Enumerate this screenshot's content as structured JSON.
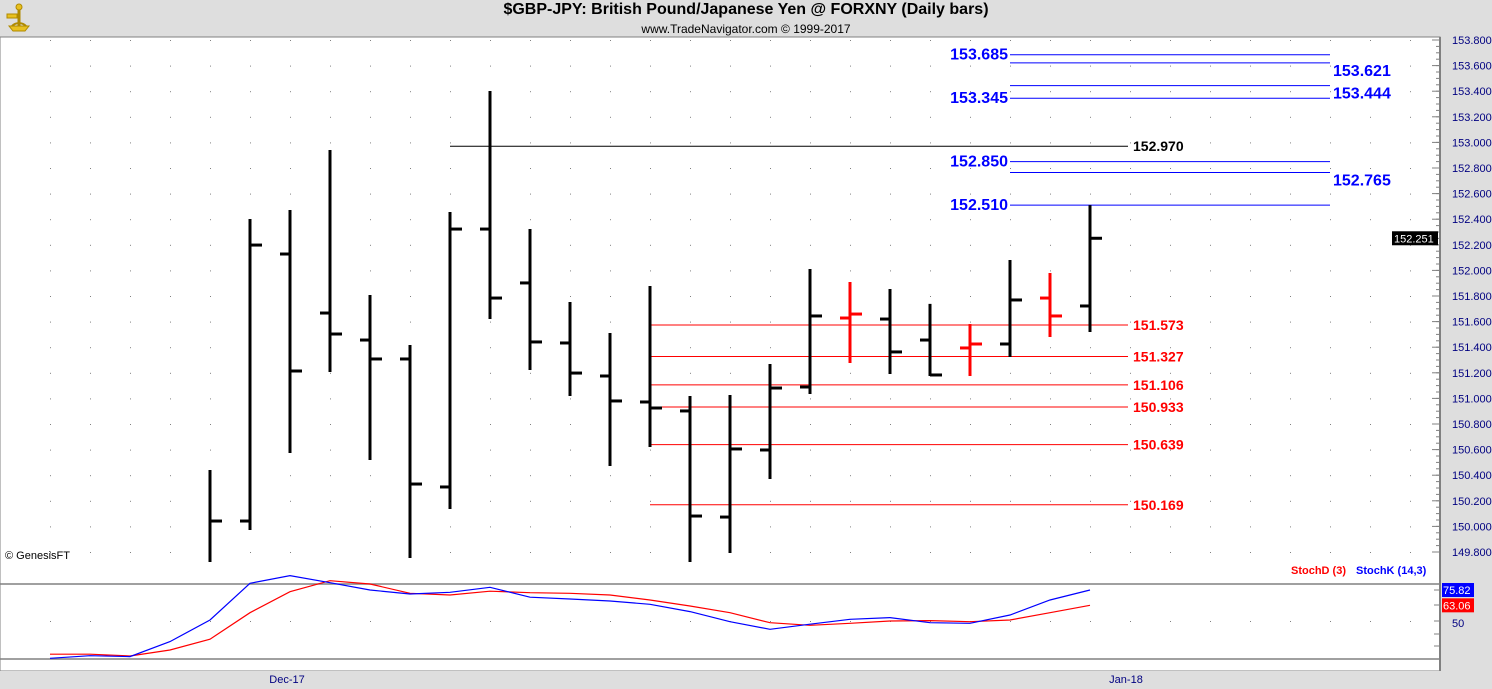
{
  "header": {
    "title": "$GBP-JPY:  British Pound/Japanese Yen @ FORXNY  (Daily bars)",
    "subtitle": "www.TradeNavigator.com © 1999-2017",
    "logo_icon": "sextant-icon"
  },
  "copyright": "© GenesisFT",
  "colors": {
    "up_bar": "#000000",
    "red_bar": "#ff0000",
    "support": "#ff0000",
    "target": "#0000ff",
    "pivot": "#000000",
    "stoch_k": "#0000ff",
    "stoch_d": "#ff0000"
  },
  "chart_data": [
    {
      "type": "ohlc",
      "title": "$GBP-JPY Daily bars",
      "ylim": [
        149.8,
        153.8
      ],
      "y_ticks": [
        "153.800",
        "153.600",
        "153.400",
        "153.200",
        "153.000",
        "152.800",
        "152.600",
        "152.400",
        "152.200",
        "152.000",
        "151.800",
        "151.600",
        "151.400",
        "151.200",
        "151.000",
        "150.800",
        "150.600",
        "150.400",
        "150.200",
        "150.000",
        "149.800"
      ],
      "x_labels": [
        {
          "index": 2,
          "label": "Dec-17"
        },
        {
          "index": 23,
          "label": "Jan-18"
        }
      ],
      "last_price": "152.251",
      "bars": [
        {
          "o": null,
          "h": 150.441,
          "l": 149.722,
          "c": 150.042,
          "color": "black"
        },
        {
          "o": 150.042,
          "h": 152.402,
          "l": 149.972,
          "c": 152.198,
          "color": "black"
        },
        {
          "o": 152.128,
          "h": 152.472,
          "l": 150.573,
          "c": 151.214,
          "color": "black"
        },
        {
          "o": 151.667,
          "h": 152.941,
          "l": 151.206,
          "c": 151.503,
          "color": "black"
        },
        {
          "o": 151.456,
          "h": 151.808,
          "l": 150.519,
          "c": 151.308,
          "color": "black"
        },
        {
          "o": 151.308,
          "h": 151.417,
          "l": 149.753,
          "c": 150.331,
          "color": "black"
        },
        {
          "o": 150.308,
          "h": 152.456,
          "l": 150.136,
          "c": 152.323,
          "color": "black"
        },
        {
          "o": 152.323,
          "h": 153.402,
          "l": 151.62,
          "c": 151.784,
          "color": "black"
        },
        {
          "o": 151.902,
          "h": 152.323,
          "l": 151.222,
          "c": 151.441,
          "color": "black"
        },
        {
          "o": 151.433,
          "h": 151.753,
          "l": 151.019,
          "c": 151.198,
          "color": "black"
        },
        {
          "o": 151.175,
          "h": 151.511,
          "l": 150.472,
          "c": 150.98,
          "color": "black"
        },
        {
          "o": 150.972,
          "h": 151.878,
          "l": 150.62,
          "c": 150.925,
          "color": "black"
        },
        {
          "o": 150.902,
          "h": 151.019,
          "l": 149.722,
          "c": 150.081,
          "color": "black"
        },
        {
          "o": 150.073,
          "h": 151.027,
          "l": 149.792,
          "c": 150.605,
          "color": "black"
        },
        {
          "o": 150.597,
          "h": 151.269,
          "l": 150.37,
          "c": 151.081,
          "color": "black"
        },
        {
          "o": 151.089,
          "h": 152.011,
          "l": 151.034,
          "c": 151.644,
          "color": "black"
        },
        {
          "o": 151.628,
          "h": 151.909,
          "l": 151.277,
          "c": 151.659,
          "color": "red"
        },
        {
          "o": 151.62,
          "h": 151.855,
          "l": 151.191,
          "c": 151.363,
          "color": "black"
        },
        {
          "o": 151.456,
          "h": 151.738,
          "l": 151.175,
          "c": 151.183,
          "color": "black"
        },
        {
          "o": 151.394,
          "h": 151.581,
          "l": 151.175,
          "c": 151.425,
          "color": "red"
        },
        {
          "o": 151.425,
          "h": 152.081,
          "l": 151.323,
          "c": 151.769,
          "color": "black"
        },
        {
          "o": 151.784,
          "h": 151.98,
          "l": 151.48,
          "c": 151.644,
          "color": "red"
        },
        {
          "o": 151.722,
          "h": 152.51,
          "l": 151.519,
          "c": 152.251,
          "color": "black"
        }
      ],
      "levels": [
        {
          "value": 153.685,
          "label": "153.685",
          "kind": "target",
          "label_side": "left",
          "from_bar": 21
        },
        {
          "value": 153.621,
          "label": "153.621",
          "kind": "target",
          "label_side": "right",
          "from_bar": 21
        },
        {
          "value": 153.444,
          "label": "153.444",
          "kind": "target",
          "label_side": "right",
          "from_bar": 21
        },
        {
          "value": 153.345,
          "label": "153.345",
          "kind": "target",
          "label_side": "left",
          "from_bar": 21
        },
        {
          "value": 152.97,
          "label": "152.970",
          "kind": "pivot",
          "label_side": "end",
          "from_bar": 7
        },
        {
          "value": 152.85,
          "label": "152.850",
          "kind": "target",
          "label_side": "left",
          "from_bar": 21
        },
        {
          "value": 152.765,
          "label": "152.765",
          "kind": "target",
          "label_side": "right",
          "from_bar": 21
        },
        {
          "value": 152.51,
          "label": "152.510",
          "kind": "target",
          "label_side": "left",
          "from_bar": 21
        },
        {
          "value": 151.573,
          "label": "151.573",
          "kind": "support",
          "label_side": "end",
          "from_bar": 12
        },
        {
          "value": 151.327,
          "label": "151.327",
          "kind": "support",
          "label_side": "end",
          "from_bar": 12
        },
        {
          "value": 151.106,
          "label": "151.106",
          "kind": "support",
          "label_side": "end",
          "from_bar": 12
        },
        {
          "value": 150.933,
          "label": "150.933",
          "kind": "support",
          "label_side": "end",
          "from_bar": 12
        },
        {
          "value": 150.639,
          "label": "150.639",
          "kind": "support",
          "label_side": "end",
          "from_bar": 12
        },
        {
          "value": 150.169,
          "label": "150.169",
          "kind": "support",
          "label_side": "end",
          "from_bar": 12
        }
      ]
    },
    {
      "type": "line",
      "title": "Stochastic",
      "ylim": [
        18,
        81
      ],
      "y_ticks": [
        "50"
      ],
      "legend": [
        "StochD (3)",
        "StochK (14,3)"
      ],
      "legend_position": "top-right",
      "start_index": -4,
      "series": [
        {
          "name": "StochK (14,3)",
          "last": "75.82",
          "values": [
            18.9,
            21.1,
            20.3,
            32.8,
            50.8,
            81.4,
            87.8,
            81.9,
            75.8,
            72.5,
            73.9,
            78.1,
            69.8,
            68.3,
            66.7,
            63.9,
            57.8,
            49.4,
            43.1,
            47.3,
            51.4,
            52.8,
            48.6,
            48.1,
            55.0,
            67.5,
            75.82
          ]
        },
        {
          "name": "StochD (3)",
          "last": "63.06",
          "values": [
            22.3,
            22.3,
            20.8,
            25.8,
            34.8,
            56.9,
            74.4,
            83.6,
            80.8,
            73.1,
            71.7,
            74.8,
            73.6,
            73.1,
            71.7,
            67.5,
            62.5,
            56.9,
            48.6,
            46.4,
            48.1,
            50.0,
            50.3,
            49.4,
            50.8,
            56.9,
            63.06
          ]
        }
      ]
    }
  ]
}
